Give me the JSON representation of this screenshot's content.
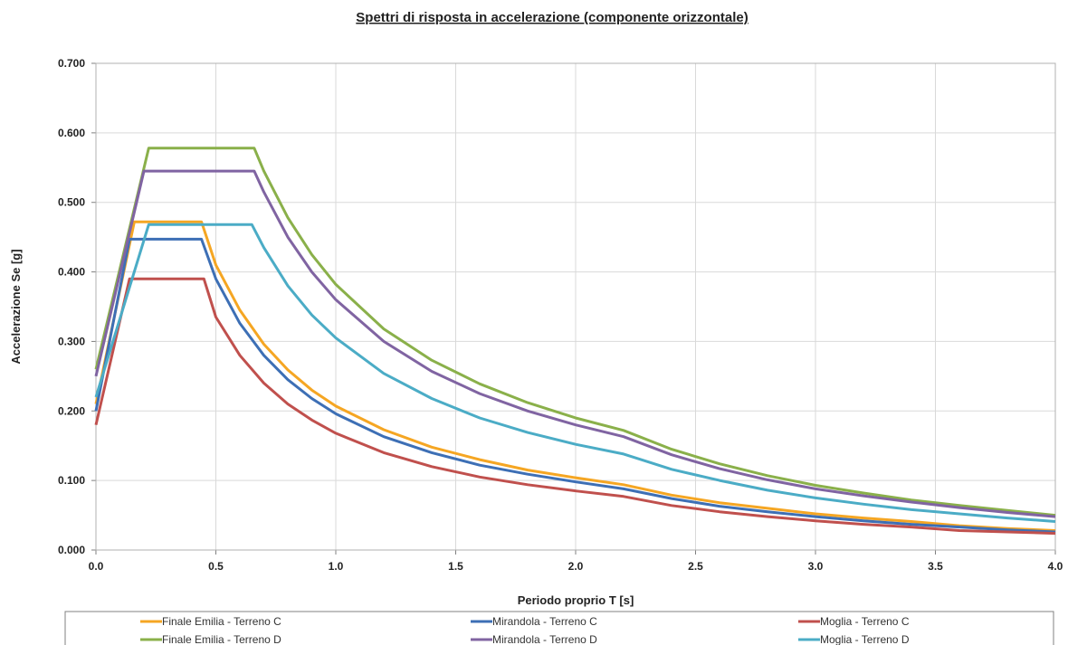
{
  "chart_data": {
    "type": "line",
    "title": "Spettri di risposta in accelerazione (componente orizzontale)",
    "xlabel": "Periodo proprio T [s]",
    "ylabel": "Accelerazione Se [g]",
    "xlim": [
      0.0,
      4.0
    ],
    "ylim": [
      0.0,
      0.7
    ],
    "x_ticks": [
      "0.0",
      "0.5",
      "1.0",
      "1.5",
      "2.0",
      "2.5",
      "3.0",
      "3.5",
      "4.0"
    ],
    "y_ticks": [
      "0.000",
      "0.100",
      "0.200",
      "0.300",
      "0.400",
      "0.500",
      "0.600",
      "0.700"
    ],
    "grid": true,
    "legend_position": "bottom",
    "series": [
      {
        "name": "Finale Emilia - Terreno C",
        "color": "#f5a623",
        "points": [
          [
            0,
            0.21
          ],
          [
            0.16,
            0.472
          ],
          [
            0.44,
            0.472
          ],
          [
            0.5,
            0.41
          ],
          [
            0.6,
            0.345
          ],
          [
            0.7,
            0.296
          ],
          [
            0.8,
            0.259
          ],
          [
            0.9,
            0.23
          ],
          [
            1.0,
            0.207
          ],
          [
            1.2,
            0.173
          ],
          [
            1.4,
            0.148
          ],
          [
            1.6,
            0.13
          ],
          [
            1.8,
            0.115
          ],
          [
            2.0,
            0.104
          ],
          [
            2.2,
            0.094
          ],
          [
            2.4,
            0.079
          ],
          [
            2.6,
            0.068
          ],
          [
            2.8,
            0.06
          ],
          [
            3.0,
            0.052
          ],
          [
            3.2,
            0.046
          ],
          [
            3.4,
            0.041
          ],
          [
            3.6,
            0.035
          ],
          [
            3.8,
            0.031
          ],
          [
            4.0,
            0.028
          ]
        ]
      },
      {
        "name": "Mirandola - Terreno C",
        "color": "#3d6fb5",
        "points": [
          [
            0,
            0.2
          ],
          [
            0.14,
            0.447
          ],
          [
            0.44,
            0.447
          ],
          [
            0.5,
            0.39
          ],
          [
            0.6,
            0.326
          ],
          [
            0.7,
            0.28
          ],
          [
            0.8,
            0.245
          ],
          [
            0.9,
            0.218
          ],
          [
            1.0,
            0.196
          ],
          [
            1.2,
            0.163
          ],
          [
            1.4,
            0.14
          ],
          [
            1.6,
            0.122
          ],
          [
            1.8,
            0.109
          ],
          [
            2.0,
            0.098
          ],
          [
            2.2,
            0.088
          ],
          [
            2.4,
            0.074
          ],
          [
            2.6,
            0.063
          ],
          [
            2.8,
            0.055
          ],
          [
            3.0,
            0.048
          ],
          [
            3.2,
            0.042
          ],
          [
            3.4,
            0.037
          ],
          [
            3.6,
            0.033
          ],
          [
            3.8,
            0.029
          ],
          [
            4.0,
            0.026
          ]
        ]
      },
      {
        "name": "Moglia - Terreno C",
        "color": "#c0504d",
        "points": [
          [
            0,
            0.18
          ],
          [
            0.14,
            0.39
          ],
          [
            0.45,
            0.39
          ],
          [
            0.5,
            0.335
          ],
          [
            0.6,
            0.28
          ],
          [
            0.7,
            0.24
          ],
          [
            0.8,
            0.21
          ],
          [
            0.9,
            0.187
          ],
          [
            1.0,
            0.168
          ],
          [
            1.2,
            0.14
          ],
          [
            1.4,
            0.12
          ],
          [
            1.6,
            0.105
          ],
          [
            1.8,
            0.094
          ],
          [
            2.0,
            0.085
          ],
          [
            2.2,
            0.077
          ],
          [
            2.4,
            0.064
          ],
          [
            2.6,
            0.055
          ],
          [
            2.8,
            0.048
          ],
          [
            3.0,
            0.042
          ],
          [
            3.2,
            0.037
          ],
          [
            3.4,
            0.033
          ],
          [
            3.6,
            0.028
          ],
          [
            3.8,
            0.026
          ],
          [
            4.0,
            0.024
          ]
        ]
      },
      {
        "name": "Finale Emilia - Terreno D",
        "color": "#8ab04a",
        "points": [
          [
            0,
            0.26
          ],
          [
            0.22,
            0.578
          ],
          [
            0.66,
            0.578
          ],
          [
            0.7,
            0.545
          ],
          [
            0.8,
            0.478
          ],
          [
            0.9,
            0.425
          ],
          [
            1.0,
            0.382
          ],
          [
            1.2,
            0.318
          ],
          [
            1.4,
            0.273
          ],
          [
            1.6,
            0.239
          ],
          [
            1.8,
            0.212
          ],
          [
            2.0,
            0.19
          ],
          [
            2.2,
            0.172
          ],
          [
            2.4,
            0.145
          ],
          [
            2.6,
            0.124
          ],
          [
            2.8,
            0.107
          ],
          [
            3.0,
            0.093
          ],
          [
            3.2,
            0.082
          ],
          [
            3.4,
            0.072
          ],
          [
            3.6,
            0.064
          ],
          [
            3.8,
            0.057
          ],
          [
            4.0,
            0.05
          ]
        ]
      },
      {
        "name": "Mirandola - Terreno D",
        "color": "#8064a2",
        "points": [
          [
            0,
            0.25
          ],
          [
            0.2,
            0.545
          ],
          [
            0.66,
            0.545
          ],
          [
            0.7,
            0.515
          ],
          [
            0.8,
            0.45
          ],
          [
            0.9,
            0.4
          ],
          [
            1.0,
            0.36
          ],
          [
            1.2,
            0.3
          ],
          [
            1.4,
            0.257
          ],
          [
            1.6,
            0.225
          ],
          [
            1.8,
            0.2
          ],
          [
            2.0,
            0.18
          ],
          [
            2.2,
            0.163
          ],
          [
            2.4,
            0.137
          ],
          [
            2.6,
            0.117
          ],
          [
            2.8,
            0.101
          ],
          [
            3.0,
            0.088
          ],
          [
            3.2,
            0.078
          ],
          [
            3.4,
            0.069
          ],
          [
            3.6,
            0.061
          ],
          [
            3.8,
            0.054
          ],
          [
            4.0,
            0.048
          ]
        ]
      },
      {
        "name": "Moglia - Terreno D",
        "color": "#4bacc6",
        "points": [
          [
            0,
            0.22
          ],
          [
            0.22,
            0.468
          ],
          [
            0.65,
            0.468
          ],
          [
            0.7,
            0.435
          ],
          [
            0.8,
            0.38
          ],
          [
            0.9,
            0.338
          ],
          [
            1.0,
            0.305
          ],
          [
            1.2,
            0.254
          ],
          [
            1.4,
            0.218
          ],
          [
            1.6,
            0.19
          ],
          [
            1.8,
            0.169
          ],
          [
            2.0,
            0.152
          ],
          [
            2.2,
            0.138
          ],
          [
            2.4,
            0.116
          ],
          [
            2.6,
            0.1
          ],
          [
            2.8,
            0.086
          ],
          [
            3.0,
            0.075
          ],
          [
            3.2,
            0.066
          ],
          [
            3.4,
            0.058
          ],
          [
            3.6,
            0.052
          ],
          [
            3.8,
            0.046
          ],
          [
            4.0,
            0.041
          ]
        ]
      }
    ]
  }
}
